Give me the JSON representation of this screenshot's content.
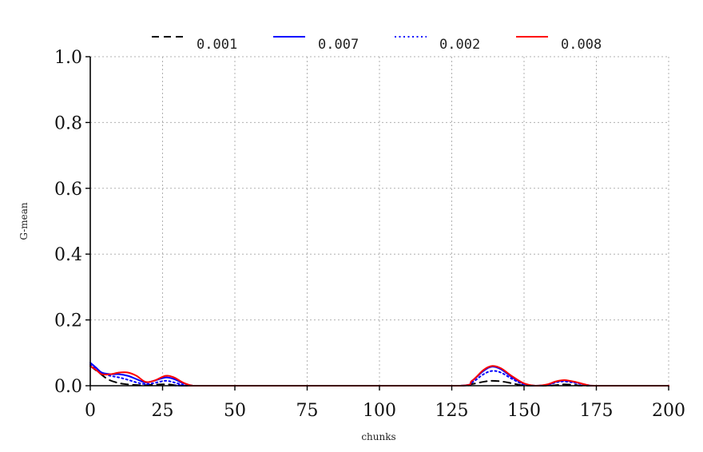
{
  "chart_data": {
    "type": "line",
    "title": "",
    "xlabel": "chunks",
    "ylabel": "G-mean",
    "xlim": [
      0,
      200
    ],
    "ylim": [
      0,
      1.0
    ],
    "xticks": [
      0,
      25,
      50,
      75,
      100,
      125,
      150,
      175,
      200
    ],
    "yticks": [
      0.0,
      0.2,
      0.4,
      0.6,
      0.8,
      1.0
    ],
    "xtick_labels": [
      "0",
      "25",
      "50",
      "75",
      "100",
      "125",
      "150",
      "175",
      "200"
    ],
    "ytick_labels": [
      "0.0",
      "0.2",
      "0.4",
      "0.6",
      "0.8",
      "1.0"
    ],
    "grid": true,
    "legend_position": "top",
    "series": [
      {
        "name": "0.001",
        "color": "#000000",
        "style": "dashed",
        "points": [
          [
            0,
            0.06
          ],
          [
            3,
            0.04
          ],
          [
            6,
            0.02
          ],
          [
            9,
            0.01
          ],
          [
            12,
            0.005
          ],
          [
            16,
            0.002
          ],
          [
            20,
            0.002
          ],
          [
            24,
            0.004
          ],
          [
            27,
            0.004
          ],
          [
            30,
            0.001
          ],
          [
            35,
            0
          ],
          [
            60,
            0
          ],
          [
            100,
            0
          ],
          [
            128,
            0
          ],
          [
            132,
            0.005
          ],
          [
            136,
            0.012
          ],
          [
            139,
            0.015
          ],
          [
            143,
            0.012
          ],
          [
            147,
            0.005
          ],
          [
            150,
            0.001
          ],
          [
            155,
            0
          ],
          [
            160,
            0.001
          ],
          [
            164,
            0.004
          ],
          [
            168,
            0.002
          ],
          [
            172,
            0
          ],
          [
            200,
            0
          ]
        ]
      },
      {
        "name": "0.007",
        "color": "#0000ff",
        "style": "solid",
        "points": [
          [
            0,
            0.07
          ],
          [
            2,
            0.055
          ],
          [
            4,
            0.04
          ],
          [
            7,
            0.035
          ],
          [
            10,
            0.035
          ],
          [
            13,
            0.03
          ],
          [
            16,
            0.02
          ],
          [
            19,
            0.01
          ],
          [
            22,
            0.015
          ],
          [
            26,
            0.025
          ],
          [
            29,
            0.02
          ],
          [
            32,
            0.008
          ],
          [
            35,
            0.001
          ],
          [
            40,
            0
          ],
          [
            100,
            0
          ],
          [
            128,
            0
          ],
          [
            132,
            0.015
          ],
          [
            136,
            0.045
          ],
          [
            139,
            0.058
          ],
          [
            142,
            0.05
          ],
          [
            146,
            0.025
          ],
          [
            150,
            0.006
          ],
          [
            154,
            0
          ],
          [
            158,
            0.003
          ],
          [
            161,
            0.012
          ],
          [
            164,
            0.016
          ],
          [
            168,
            0.01
          ],
          [
            172,
            0.002
          ],
          [
            176,
            0
          ],
          [
            200,
            0
          ]
        ]
      },
      {
        "name": "0.002",
        "color": "#0000ff",
        "style": "dotted",
        "points": [
          [
            0,
            0.065
          ],
          [
            2,
            0.05
          ],
          [
            4,
            0.038
          ],
          [
            7,
            0.03
          ],
          [
            10,
            0.025
          ],
          [
            13,
            0.018
          ],
          [
            16,
            0.01
          ],
          [
            19,
            0.005
          ],
          [
            22,
            0.008
          ],
          [
            26,
            0.015
          ],
          [
            29,
            0.01
          ],
          [
            32,
            0.003
          ],
          [
            35,
            0
          ],
          [
            100,
            0
          ],
          [
            128,
            0
          ],
          [
            132,
            0.01
          ],
          [
            136,
            0.035
          ],
          [
            139,
            0.045
          ],
          [
            142,
            0.04
          ],
          [
            146,
            0.02
          ],
          [
            150,
            0.004
          ],
          [
            154,
            0
          ],
          [
            158,
            0.002
          ],
          [
            161,
            0.01
          ],
          [
            164,
            0.013
          ],
          [
            168,
            0.008
          ],
          [
            172,
            0.001
          ],
          [
            176,
            0
          ],
          [
            200,
            0
          ]
        ]
      },
      {
        "name": "0.008",
        "color": "#ff0000",
        "style": "solid",
        "points": [
          [
            0,
            0.06
          ],
          [
            2,
            0.048
          ],
          [
            4,
            0.035
          ],
          [
            7,
            0.035
          ],
          [
            10,
            0.04
          ],
          [
            13,
            0.04
          ],
          [
            16,
            0.03
          ],
          [
            19,
            0.012
          ],
          [
            22,
            0.015
          ],
          [
            26,
            0.03
          ],
          [
            29,
            0.025
          ],
          [
            32,
            0.01
          ],
          [
            35,
            0.001
          ],
          [
            40,
            0
          ],
          [
            100,
            0
          ],
          [
            128,
            0
          ],
          [
            132,
            0.015
          ],
          [
            136,
            0.048
          ],
          [
            139,
            0.06
          ],
          [
            142,
            0.053
          ],
          [
            146,
            0.028
          ],
          [
            150,
            0.007
          ],
          [
            154,
            0
          ],
          [
            158,
            0.004
          ],
          [
            161,
            0.013
          ],
          [
            164,
            0.017
          ],
          [
            168,
            0.011
          ],
          [
            172,
            0.002
          ],
          [
            176,
            0
          ],
          [
            200,
            0
          ]
        ]
      }
    ]
  }
}
